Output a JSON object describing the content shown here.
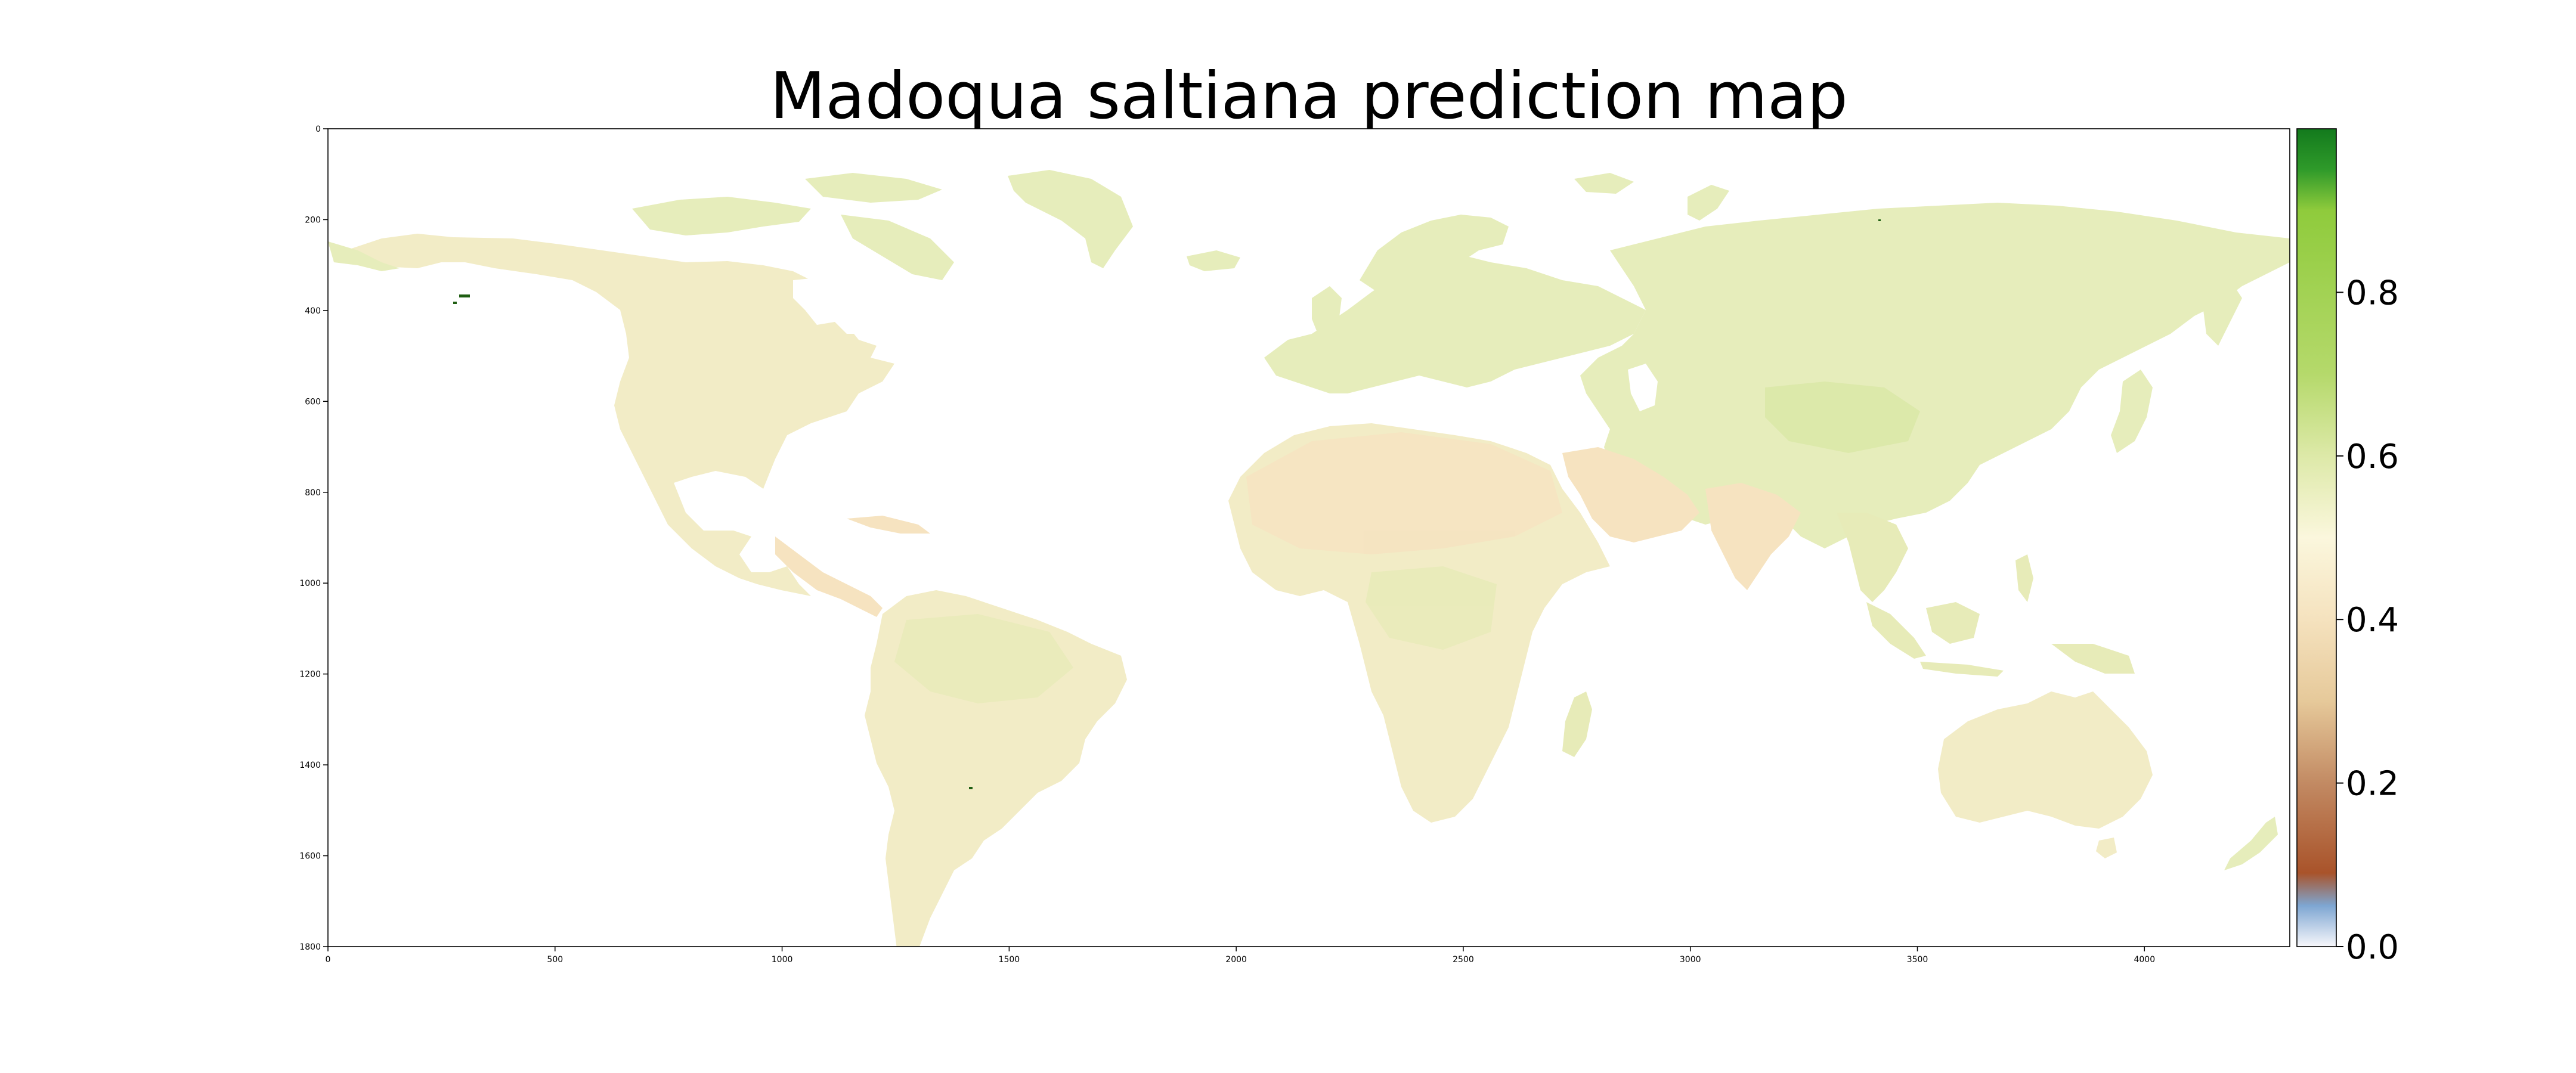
{
  "title": "Madoqua saltiana prediction map",
  "x_axis": {
    "ticks": [
      0,
      500,
      1000,
      1500,
      2000,
      2500,
      3000,
      3500,
      4000
    ],
    "range": [
      0,
      4320
    ]
  },
  "y_axis": {
    "ticks": [
      0,
      200,
      400,
      600,
      800,
      1000,
      1200,
      1400,
      1600,
      1800
    ],
    "range": [
      0,
      1800
    ],
    "inverted": true
  },
  "colorbar": {
    "ticks": [
      "0.0",
      "0.2",
      "0.4",
      "0.6",
      "0.8"
    ],
    "range": [
      0,
      1
    ],
    "stops": [
      {
        "v": 0.0,
        "c": "#f7f7fb"
      },
      {
        "v": 0.05,
        "c": "#7ea6d2"
      },
      {
        "v": 0.09,
        "c": "#a9532a"
      },
      {
        "v": 0.2,
        "c": "#c28a63"
      },
      {
        "v": 0.3,
        "c": "#e6c99a"
      },
      {
        "v": 0.4,
        "c": "#f5e2be"
      },
      {
        "v": 0.5,
        "c": "#fbf7dd"
      },
      {
        "v": 0.6,
        "c": "#dde9a8"
      },
      {
        "v": 0.7,
        "c": "#b5d96b"
      },
      {
        "v": 0.9,
        "c": "#8fcb3c"
      },
      {
        "v": 0.95,
        "c": "#2f9a2a"
      },
      {
        "v": 1.0,
        "c": "#137a1d"
      }
    ]
  },
  "map_colors": {
    "tundra": "#e6edbb",
    "temperate": "#f2ecc6",
    "arid": "#f6e3c0",
    "tropical": "#e7ebb8",
    "highland": "#d9e7a6",
    "background": "#ffffff",
    "hotspot": "#1f5e12"
  }
}
